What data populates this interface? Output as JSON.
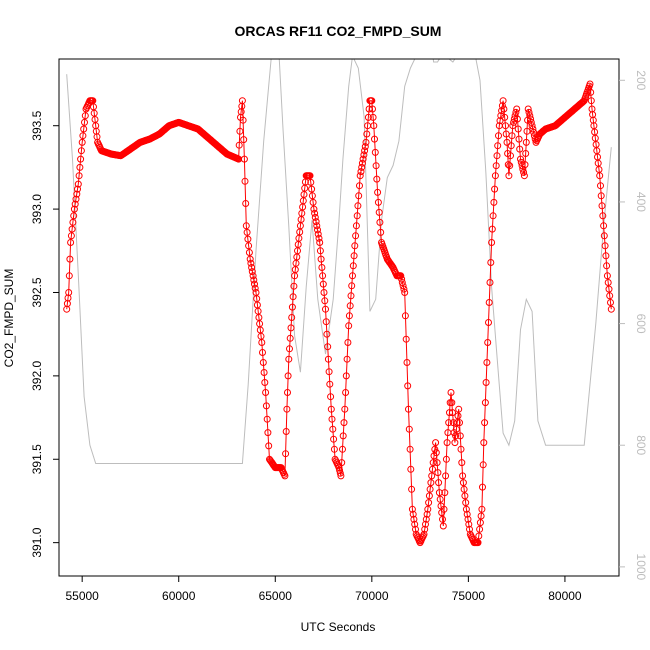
{
  "chart_data": {
    "type": "scatter",
    "title": "ORCAS RF11 CO2_FMPD_SUM",
    "xlabel": "UTC Seconds",
    "ylabel": "CO2_FMPD_SUM",
    "xlim": [
      53800,
      82800
    ],
    "ylim": [
      390.8,
      393.9
    ],
    "x_ticks": [
      55000,
      60000,
      65000,
      70000,
      75000,
      80000
    ],
    "x_tick_labels": [
      "55000",
      "60000",
      "65000",
      "70000",
      "75000",
      "80000"
    ],
    "y_ticks": [
      391.0,
      391.5,
      392.0,
      392.5,
      393.0,
      393.5
    ],
    "y_tick_labels": [
      "391.0",
      "391.5",
      "392.0",
      "392.5",
      "393.0",
      "393.5"
    ],
    "y2_lim": [
      1015,
      165
    ],
    "y2_ticks": [
      200,
      400,
      600,
      800,
      1000
    ],
    "y2_tick_labels": [
      "200",
      "400",
      "600",
      "800",
      "1000"
    ],
    "grid": false,
    "colors": {
      "co2": "#ff0000",
      "pressure": "#bdbdbd"
    },
    "series": [
      {
        "role": "CO2_FMPD_SUM",
        "style": "points-and-lines",
        "color": "#ff0000",
        "axis": "left",
        "x": [
          54200,
          54300,
          54400,
          54600,
          54800,
          55000,
          55200,
          55400,
          55550,
          55700,
          55800,
          56000,
          56500,
          57000,
          57500,
          58000,
          58500,
          59000,
          59500,
          60000,
          60500,
          61000,
          61500,
          62000,
          62500,
          63100,
          63200,
          63300,
          63400,
          63500,
          63700,
          64000,
          64300,
          64500,
          64700,
          65000,
          65300,
          65500,
          65600,
          65700,
          66000,
          66300,
          66600,
          66800,
          67000,
          67300,
          67600,
          67900,
          68100,
          68300,
          68400,
          68600,
          68800,
          69000,
          69200,
          69400,
          69700,
          69900,
          70000,
          70100,
          70300,
          70500,
          70800,
          71100,
          71300,
          71500,
          71700,
          71900,
          72100,
          72300,
          72500,
          72700,
          72900,
          73100,
          73300,
          73500,
          73700,
          73900,
          74100,
          74300,
          74500,
          74700,
          74900,
          75100,
          75300,
          75500,
          75700,
          75800,
          76000,
          76200,
          76400,
          76600,
          76800,
          77000,
          77100,
          77300,
          77500,
          77700,
          77900,
          78000,
          78100,
          78300,
          78500,
          78700,
          79000,
          79500,
          80000,
          80500,
          81000,
          81300,
          81400,
          81500,
          81800,
          82000,
          82200,
          82400
        ],
        "y": [
          392.4,
          392.5,
          392.8,
          393.0,
          393.15,
          393.4,
          393.6,
          393.65,
          393.65,
          393.5,
          393.4,
          393.35,
          393.33,
          393.32,
          393.36,
          393.4,
          393.42,
          393.45,
          393.5,
          393.52,
          393.5,
          393.48,
          393.43,
          393.38,
          393.33,
          393.3,
          393.55,
          393.65,
          393.3,
          392.9,
          392.7,
          392.5,
          392.2,
          391.9,
          391.5,
          391.45,
          391.45,
          391.4,
          391.8,
          392.1,
          392.6,
          392.9,
          393.2,
          393.2,
          393.0,
          392.8,
          392.4,
          391.8,
          391.5,
          391.45,
          391.4,
          391.8,
          392.3,
          392.6,
          392.9,
          393.2,
          393.4,
          393.65,
          393.65,
          393.5,
          393.1,
          392.8,
          392.7,
          392.65,
          392.6,
          392.6,
          392.5,
          391.8,
          391.2,
          391.05,
          391.0,
          391.05,
          391.2,
          391.4,
          391.6,
          391.3,
          391.1,
          391.6,
          391.9,
          391.6,
          391.8,
          391.4,
          391.2,
          391.05,
          391.0,
          391.0,
          391.2,
          391.6,
          392.2,
          392.8,
          393.2,
          393.5,
          393.65,
          393.4,
          393.2,
          393.5,
          393.6,
          393.3,
          393.2,
          393.4,
          393.6,
          393.5,
          393.4,
          393.45,
          393.48,
          393.5,
          393.55,
          393.6,
          393.65,
          393.75,
          393.6,
          393.5,
          393.2,
          392.9,
          392.6,
          392.4
        ]
      },
      {
        "role": "pressure",
        "style": "line",
        "color": "#bdbdbd",
        "axis": "right",
        "x": [
          54200,
          54500,
          54800,
          55100,
          55400,
          55700,
          56000,
          58000,
          60000,
          62000,
          63300,
          63600,
          64000,
          64400,
          64800,
          65200,
          65400,
          65700,
          66000,
          66300,
          66600,
          66900,
          67200,
          67600,
          68000,
          68300,
          68500,
          68800,
          69000,
          69300,
          69600,
          69900,
          70200,
          70500,
          70800,
          71100,
          71400,
          71700,
          72000,
          72300,
          72600,
          72900,
          73100,
          73200,
          73400,
          73600,
          73800,
          74000,
          74200,
          74400,
          74700,
          75000,
          75300,
          75600,
          75900,
          76200,
          76500,
          76800,
          77100,
          77400,
          77700,
          78000,
          78300,
          78600,
          79000,
          79500,
          80000,
          80500,
          81000,
          81300,
          81600,
          82000,
          82400
        ],
        "y": [
          190,
          330,
          520,
          720,
          800,
          830,
          830,
          830,
          830,
          830,
          830,
          700,
          480,
          300,
          160,
          160,
          280,
          440,
          620,
          680,
          540,
          430,
          560,
          650,
          560,
          430,
          330,
          210,
          160,
          180,
          260,
          580,
          560,
          430,
          360,
          340,
          300,
          210,
          180,
          160,
          150,
          145,
          145,
          170,
          170,
          160,
          160,
          165,
          170,
          160,
          150,
          150,
          150,
          200,
          350,
          540,
          660,
          780,
          800,
          760,
          610,
          560,
          580,
          760,
          800,
          800,
          800,
          800,
          800,
          700,
          600,
          440,
          310
        ]
      }
    ]
  }
}
